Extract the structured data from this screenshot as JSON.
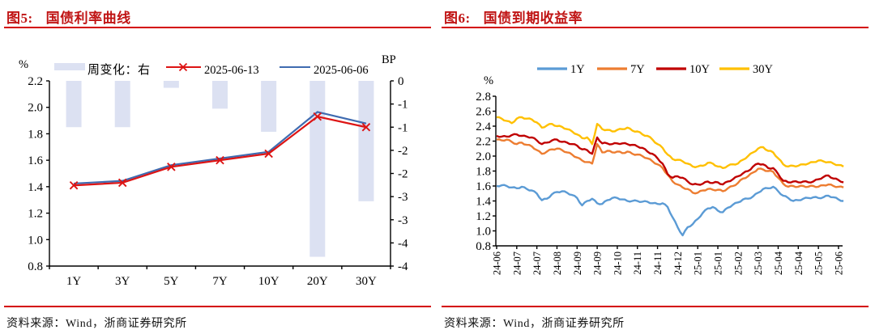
{
  "colors": {
    "title_red": "#C01414",
    "rule_red": "#D40000",
    "axis": "#000000",
    "bar_fill": "#DCE1F2",
    "fig5_line_red": "#DD1414",
    "fig5_line_blue": "#3F6BB0",
    "fig6_blue": "#5B9BD5",
    "fig6_orange": "#ED7D31",
    "fig6_red": "#C00000",
    "fig6_yellow": "#FFC000"
  },
  "source_text": "资料来源：Wind，浙商证券研究所",
  "figure5": {
    "tag": "图5:",
    "title": "国债利率曲线",
    "unit_left": "%",
    "unit_right": "BP",
    "legend": [
      {
        "type": "bar",
        "label": "周变化：右"
      },
      {
        "type": "line-x",
        "label": "2025-06-13"
      },
      {
        "type": "line",
        "label": "2025-06-06"
      }
    ],
    "chart_data": {
      "type": "bar+line",
      "categories": [
        "1Y",
        "3Y",
        "5Y",
        "7Y",
        "10Y",
        "20Y",
        "30Y"
      ],
      "left_axis": {
        "min": 0.8,
        "max": 2.2,
        "labels": [
          "2.2",
          "2.0",
          "1.8",
          "1.6",
          "1.4",
          "1.2",
          "1.0",
          "0.8"
        ]
      },
      "right_axis": {
        "min": -4,
        "max": 0,
        "labels": [
          "0",
          "-1",
          "-1",
          "-2",
          "-2",
          "-3",
          "-3",
          "-4",
          "-4"
        ]
      },
      "bar_series": {
        "name": "周变化：右",
        "axis": "right",
        "values": [
          -1.0,
          -1.0,
          -0.15,
          -0.6,
          -1.1,
          -3.8,
          -2.6
        ]
      },
      "line_series": [
        {
          "name": "2025-06-13",
          "marker": "x",
          "colorkey": "fig5_line_red",
          "values": [
            1.41,
            1.43,
            1.55,
            1.6,
            1.65,
            1.93,
            1.85
          ]
        },
        {
          "name": "2025-06-06",
          "marker": "none",
          "colorkey": "fig5_line_blue",
          "values": [
            1.424,
            1.444,
            1.563,
            1.613,
            1.664,
            1.965,
            1.878
          ]
        }
      ]
    }
  },
  "figure6": {
    "tag": "图6:",
    "title": "国债到期收益率",
    "unit_left": "%",
    "legend": [
      {
        "type": "line",
        "label": "1Y",
        "colorkey": "fig6_blue"
      },
      {
        "type": "line",
        "label": "7Y",
        "colorkey": "fig6_orange"
      },
      {
        "type": "line",
        "label": "10Y",
        "colorkey": "fig6_red"
      },
      {
        "type": "line",
        "label": "30Y",
        "colorkey": "fig6_yellow"
      }
    ],
    "chart_data": {
      "type": "line",
      "x_tick_labels": [
        "24-06",
        "24-07",
        "24-07",
        "24-08",
        "24-09",
        "24-09",
        "24-10",
        "24-11",
        "24-11",
        "24-12",
        "25-01",
        "25-01",
        "25-02",
        "25-03",
        "25-04",
        "25-04",
        "25-05",
        "25-06"
      ],
      "y_axis": {
        "min": 0.8,
        "max": 2.8,
        "labels": [
          "2.8",
          "2.6",
          "2.4",
          "2.2",
          "2.0",
          "1.8",
          "1.6",
          "1.4",
          "1.2",
          "1.0",
          "0.8"
        ]
      },
      "t_step": 0.25,
      "series": [
        {
          "name": "1Y",
          "colorkey": "fig6_blue",
          "values": [
            1.6,
            1.61,
            1.6,
            1.58,
            1.57,
            1.59,
            1.56,
            1.54,
            1.5,
            1.41,
            1.43,
            1.49,
            1.52,
            1.53,
            1.51,
            1.48,
            1.44,
            1.34,
            1.4,
            1.43,
            1.37,
            1.36,
            1.41,
            1.44,
            1.44,
            1.42,
            1.4,
            1.4,
            1.4,
            1.39,
            1.39,
            1.37,
            1.36,
            1.37,
            1.32,
            1.18,
            1.05,
            0.94,
            1.05,
            1.09,
            1.16,
            1.24,
            1.3,
            1.32,
            1.27,
            1.25,
            1.31,
            1.35,
            1.38,
            1.42,
            1.43,
            1.46,
            1.51,
            1.56,
            1.57,
            1.59,
            1.53,
            1.47,
            1.44,
            1.4,
            1.41,
            1.43,
            1.44,
            1.45,
            1.44,
            1.45,
            1.47,
            1.45,
            1.42,
            1.4
          ]
        },
        {
          "name": "7Y",
          "colorkey": "fig6_orange",
          "values": [
            2.22,
            2.21,
            2.22,
            2.19,
            2.16,
            2.18,
            2.15,
            2.13,
            2.08,
            2.03,
            2.06,
            2.09,
            2.1,
            2.08,
            2.05,
            2.02,
            1.98,
            1.94,
            1.92,
            1.9,
            2.16,
            2.05,
            2.07,
            2.05,
            2.06,
            2.04,
            2.06,
            2.03,
            2.02,
            2.0,
            1.97,
            1.93,
            1.89,
            1.84,
            1.75,
            1.66,
            1.62,
            1.58,
            1.56,
            1.51,
            1.51,
            1.54,
            1.56,
            1.55,
            1.55,
            1.53,
            1.57,
            1.6,
            1.64,
            1.7,
            1.73,
            1.78,
            1.83,
            1.82,
            1.8,
            1.79,
            1.71,
            1.63,
            1.59,
            1.6,
            1.59,
            1.6,
            1.59,
            1.6,
            1.59,
            1.61,
            1.62,
            1.6,
            1.59,
            1.58
          ]
        },
        {
          "name": "10Y",
          "colorkey": "fig6_red",
          "values": [
            2.27,
            2.26,
            2.26,
            2.28,
            2.29,
            2.27,
            2.26,
            2.25,
            2.21,
            2.16,
            2.18,
            2.21,
            2.22,
            2.19,
            2.18,
            2.16,
            2.14,
            2.09,
            2.08,
            2.03,
            2.25,
            2.17,
            2.17,
            2.16,
            2.17,
            2.17,
            2.16,
            2.15,
            2.13,
            2.11,
            2.06,
            2.03,
            1.97,
            1.9,
            1.76,
            1.71,
            1.73,
            1.71,
            1.66,
            1.62,
            1.62,
            1.63,
            1.66,
            1.64,
            1.65,
            1.62,
            1.66,
            1.69,
            1.73,
            1.77,
            1.8,
            1.86,
            1.9,
            1.89,
            1.84,
            1.84,
            1.76,
            1.67,
            1.65,
            1.66,
            1.65,
            1.66,
            1.65,
            1.66,
            1.69,
            1.72,
            1.74,
            1.7,
            1.68,
            1.65
          ]
        },
        {
          "name": "30Y",
          "colorkey": "fig6_yellow",
          "values": [
            2.52,
            2.5,
            2.47,
            2.44,
            2.5,
            2.52,
            2.5,
            2.49,
            2.45,
            2.38,
            2.41,
            2.43,
            2.4,
            2.39,
            2.36,
            2.33,
            2.29,
            2.24,
            2.25,
            2.16,
            2.43,
            2.36,
            2.35,
            2.33,
            2.35,
            2.36,
            2.38,
            2.34,
            2.33,
            2.29,
            2.27,
            2.22,
            2.16,
            2.11,
            2.02,
            1.96,
            1.95,
            1.93,
            1.9,
            1.86,
            1.86,
            1.87,
            1.91,
            1.9,
            1.86,
            1.84,
            1.87,
            1.89,
            1.9,
            1.95,
            2.0,
            2.05,
            2.1,
            2.12,
            2.07,
            2.05,
            1.97,
            1.89,
            1.86,
            1.87,
            1.87,
            1.89,
            1.9,
            1.92,
            1.94,
            1.93,
            1.92,
            1.9,
            1.88,
            1.86
          ]
        }
      ]
    }
  }
}
